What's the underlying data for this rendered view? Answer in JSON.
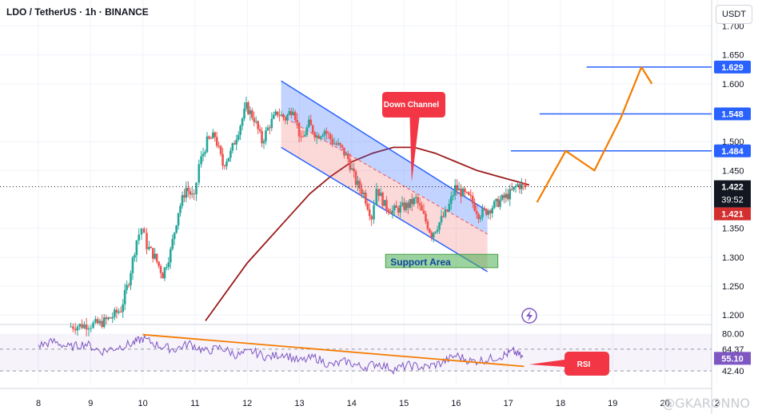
{
  "header": {
    "symbol_line": "LDO / TetherUS · 1h · BINANCE"
  },
  "currency_button": "USDT",
  "watermark": "@GKARONNO",
  "colors": {
    "up": "#26a69a",
    "down": "#ef5350",
    "ma": "#9b1c1c",
    "channel": "#2962ff",
    "orange": "#f57c00",
    "rsi_line": "#7e57c2",
    "support_fill": "#a5d6a7",
    "label_red": "#f23645"
  },
  "chart_data": {
    "type": "line",
    "title": "LDO / TetherUS · 1h · BINANCE",
    "price_axis": {
      "ticks": [
        "1.700",
        "1.650",
        "1.600",
        "1.500",
        "1.450",
        "1.350",
        "1.300",
        "1.250",
        "1.200"
      ],
      "range": [
        1.185,
        1.745
      ]
    },
    "time_axis": {
      "ticks": [
        "8",
        "9",
        "10",
        "11",
        "12",
        "13",
        "14",
        "15",
        "16",
        "17",
        "18",
        "19",
        "20",
        "2"
      ]
    },
    "price_path": {
      "x": [
        8.6,
        9.2,
        9.4,
        9.6,
        9.75,
        9.9,
        10.0,
        10.1,
        10.25,
        10.4,
        10.55,
        10.7,
        10.85,
        11.0,
        11.1,
        11.25,
        11.4,
        11.55,
        11.7,
        11.85,
        12.0,
        12.15,
        12.3,
        12.45,
        12.6,
        12.75,
        12.9,
        13.05,
        13.2,
        13.35,
        13.5,
        13.65,
        13.8,
        13.95,
        14.1,
        14.25,
        14.4,
        14.5,
        14.65,
        14.8,
        14.95,
        15.1,
        15.25,
        15.4,
        15.55,
        15.7,
        15.85,
        16.0,
        16.15,
        16.3,
        16.45,
        16.6,
        16.75,
        16.9,
        17.05,
        17.2,
        17.35
      ],
      "y": [
        1.18,
        1.185,
        1.195,
        1.21,
        1.26,
        1.33,
        1.35,
        1.32,
        1.3,
        1.27,
        1.31,
        1.38,
        1.42,
        1.4,
        1.46,
        1.5,
        1.51,
        1.46,
        1.48,
        1.52,
        1.56,
        1.54,
        1.5,
        1.53,
        1.55,
        1.54,
        1.56,
        1.5,
        1.53,
        1.51,
        1.52,
        1.5,
        1.49,
        1.47,
        1.43,
        1.41,
        1.37,
        1.42,
        1.39,
        1.38,
        1.385,
        1.39,
        1.4,
        1.37,
        1.34,
        1.36,
        1.38,
        1.42,
        1.41,
        1.4,
        1.375,
        1.38,
        1.39,
        1.4,
        1.41,
        1.425,
        1.422
      ]
    },
    "moving_average": {
      "x": [
        11.2,
        11.6,
        12.0,
        12.4,
        12.8,
        13.2,
        13.6,
        14.0,
        14.4,
        14.8,
        15.2,
        15.6,
        16.0,
        16.4,
        16.8,
        17.2,
        17.4
      ],
      "y": [
        1.19,
        1.24,
        1.29,
        1.33,
        1.37,
        1.41,
        1.44,
        1.465,
        1.48,
        1.49,
        1.49,
        1.48,
        1.465,
        1.45,
        1.44,
        1.43,
        1.425
      ]
    },
    "levels": [
      {
        "value": 1.629,
        "label": "1.629",
        "start": 18.5
      },
      {
        "value": 1.548,
        "label": "1.548",
        "start": 17.6
      },
      {
        "value": 1.484,
        "label": "1.484",
        "start": 17.05
      }
    ],
    "price_labels": {
      "last": "1.422",
      "countdown": "39:52",
      "prev": "1.421",
      "last_value": 1.422,
      "prev_value": 1.421
    },
    "channel": {
      "upper": [
        [
          12.65,
          1.605
        ],
        [
          16.6,
          1.38
        ]
      ],
      "mid": [
        [
          12.65,
          1.545
        ],
        [
          16.6,
          1.34
        ]
      ],
      "lower": [
        [
          12.65,
          1.49
        ],
        [
          16.6,
          1.275
        ]
      ]
    },
    "support_area": {
      "label": "Support Area",
      "x": [
        14.65,
        16.8
      ],
      "y": [
        1.282,
        1.305
      ]
    },
    "down_channel_label": {
      "text": "Down Channel",
      "tip": [
        15.15,
        1.43
      ]
    },
    "projection": {
      "x": [
        17.55,
        18.1,
        18.65,
        19.15,
        19.55
      ],
      "y": [
        1.395,
        1.484,
        1.45,
        1.54,
        1.629
      ],
      "end": [
        19.75,
        1.6
      ]
    },
    "rsi": {
      "levels": [
        "80.00",
        "64.37",
        "55.10",
        "42.40"
      ],
      "level_values": [
        80,
        64.37,
        55.1,
        42.4
      ],
      "range": [
        28,
        86
      ],
      "current": "55.10",
      "label": "RSI",
      "trend": [
        [
          10.0,
          79
        ],
        [
          17.3,
          47
        ]
      ],
      "x": [
        8.0,
        8.3,
        8.6,
        8.9,
        9.2,
        9.5,
        9.8,
        10.0,
        10.3,
        10.6,
        10.9,
        11.2,
        11.5,
        11.8,
        12.1,
        12.4,
        12.7,
        13.0,
        13.3,
        13.6,
        13.9,
        14.2,
        14.5,
        14.8,
        15.1,
        15.4,
        15.7,
        16.0,
        16.3,
        16.6,
        16.9,
        17.1,
        17.3
      ],
      "y": [
        68,
        72,
        66,
        70,
        62,
        66,
        70,
        75,
        68,
        64,
        70,
        62,
        66,
        58,
        62,
        56,
        60,
        52,
        56,
        48,
        52,
        46,
        50,
        44,
        48,
        46,
        50,
        58,
        52,
        54,
        58,
        62,
        55
      ]
    },
    "grid": true
  }
}
